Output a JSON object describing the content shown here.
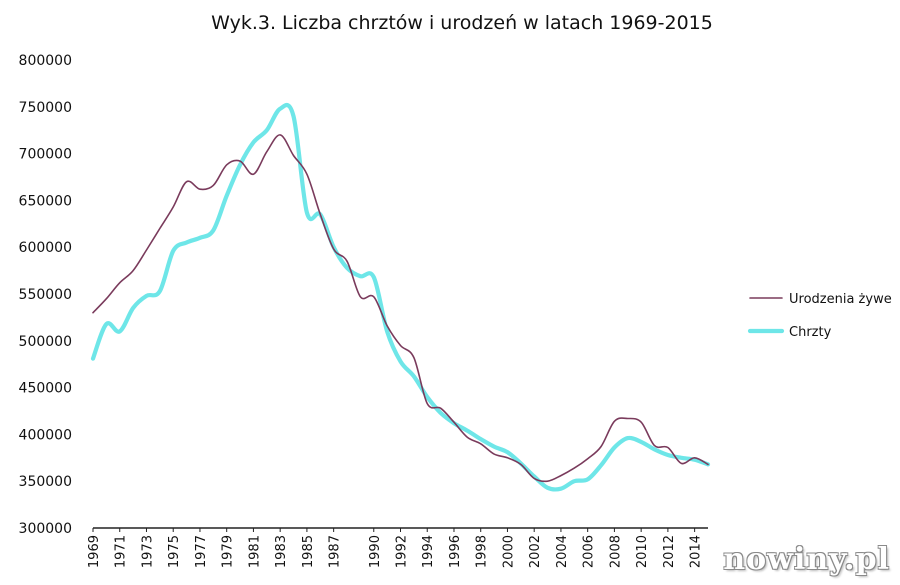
{
  "chart_data": {
    "type": "line",
    "title": "Wyk.3. Liczba chrztów i urodzeń w latach 1969-2015",
    "xlabel": "",
    "ylabel": "",
    "ylim": [
      300000,
      800000
    ],
    "yticks": [
      300000,
      350000,
      400000,
      450000,
      500000,
      550000,
      600000,
      650000,
      700000,
      750000,
      800000
    ],
    "xticks": [
      "1969",
      "1971",
      "1973",
      "1975",
      "1977",
      "1979",
      "1981",
      "1983",
      "1985",
      "1987",
      "1990",
      "1992",
      "1994",
      "1996",
      "1998",
      "2000",
      "2002",
      "2004",
      "2006",
      "2008",
      "2010",
      "2012",
      "2014"
    ],
    "grid": false,
    "legend_position": "right",
    "x": [
      1969,
      1970,
      1971,
      1972,
      1973,
      1974,
      1975,
      1976,
      1977,
      1978,
      1979,
      1980,
      1981,
      1982,
      1983,
      1984,
      1985,
      1986,
      1987,
      1988,
      1989,
      1990,
      1991,
      1992,
      1993,
      1994,
      1995,
      1996,
      1997,
      1998,
      1999,
      2000,
      2001,
      2002,
      2003,
      2004,
      2005,
      2006,
      2007,
      2008,
      2009,
      2010,
      2011,
      2012,
      2013,
      2014,
      2015
    ],
    "series": [
      {
        "name": "Urodzenia żywe",
        "color": "#7a3b5c",
        "values": [
          530000,
          545000,
          562000,
          575000,
          597000,
          620000,
          643000,
          670000,
          662000,
          666000,
          688000,
          692000,
          678000,
          702000,
          720000,
          698000,
          678000,
          635000,
          598000,
          585000,
          547000,
          547000,
          516000,
          495000,
          482000,
          433000,
          428000,
          413000,
          397000,
          390000,
          379000,
          375000,
          368000,
          353000,
          350000,
          356000,
          364000,
          374000,
          387000,
          414000,
          417000,
          413000,
          388000,
          386000,
          369000,
          375000,
          368000
        ]
      },
      {
        "name": "Chrzty",
        "color": "#6ee6e8",
        "values": [
          481000,
          518000,
          510000,
          535000,
          548000,
          553000,
          596000,
          605000,
          610000,
          618000,
          655000,
          688000,
          712000,
          725000,
          748000,
          740000,
          637000,
          635000,
          600000,
          578000,
          569000,
          568000,
          510000,
          478000,
          462000,
          440000,
          423000,
          412000,
          404000,
          395000,
          387000,
          381000,
          369000,
          355000,
          343000,
          342000,
          350000,
          352000,
          367000,
          386000,
          396000,
          392000,
          384000,
          378000,
          375000,
          373000,
          368000
        ]
      }
    ]
  },
  "watermark": "nowiny.pl"
}
